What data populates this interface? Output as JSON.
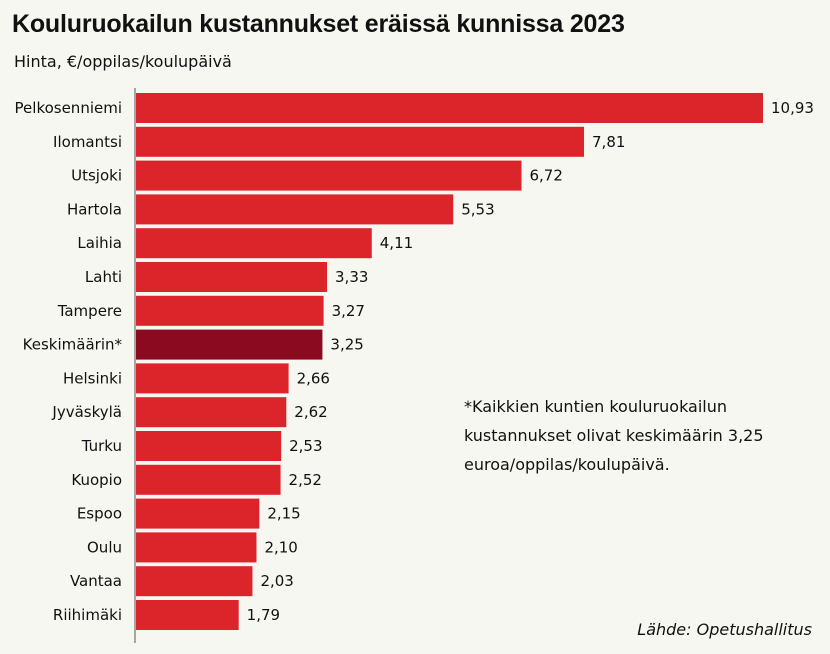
{
  "chart_data": {
    "type": "bar",
    "orientation": "horizontal",
    "title": "Kouluruokailun kustannukset eräissä kunnissa 2023",
    "subtitle": "Hinta, €/oppilas/koulupäivä",
    "categories": [
      "Pelkosenniemi",
      "Ilomantsi",
      "Utsjoki",
      "Hartola",
      "Laihia",
      "Lahti",
      "Tampere",
      "Keskimäärin*",
      "Helsinki",
      "Jyväskylä",
      "Turku",
      "Kuopio",
      "Espoo",
      "Oulu",
      "Vantaa",
      "Riihimäki"
    ],
    "values": [
      10.93,
      7.81,
      6.72,
      5.53,
      4.11,
      3.33,
      3.27,
      3.25,
      2.66,
      2.62,
      2.53,
      2.52,
      2.15,
      2.1,
      2.03,
      1.79
    ],
    "value_labels": [
      "10,93",
      "7,81",
      "6,72",
      "5,53",
      "4,11",
      "3,33",
      "3,27",
      "3,25",
      "2,66",
      "2,62",
      "2,53",
      "2,52",
      "2,15",
      "2,10",
      "2,03",
      "1,79"
    ],
    "highlight_category": "Keskimäärin*",
    "xlim": [
      0,
      11
    ],
    "grid": false,
    "legend": "none",
    "colors": {
      "bar": "#dc242b",
      "highlight": "#8b0a1f",
      "axis": "#555555"
    },
    "annotation": "*Kaikkien kuntien kouluruokailun kustannukset olivat keskimäärin 3,25 euroa/oppilas/koulupäivä.",
    "source": "Lähde: Opetushallitus"
  }
}
